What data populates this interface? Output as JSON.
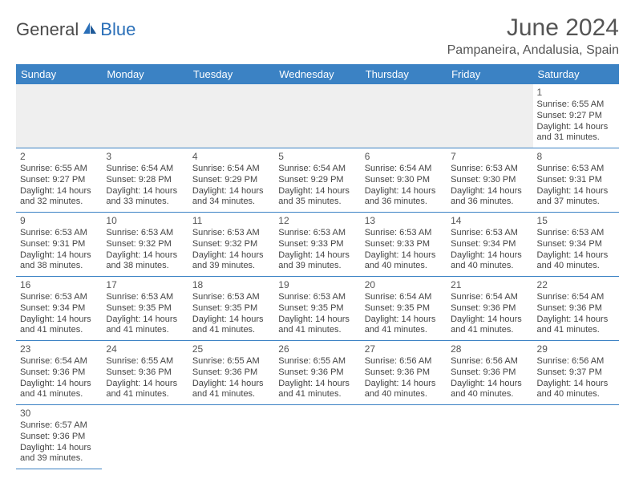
{
  "logo": {
    "text1": "General",
    "text2": "Blue"
  },
  "title": "June 2024",
  "subtitle": "Pampaneira, Andalusia, Spain",
  "colors": {
    "header_bg": "#3b82c4",
    "header_fg": "#ffffff",
    "empty_bg": "#efefef",
    "border": "#3b82c4",
    "text": "#444444",
    "logo_blue": "#2a6fb8"
  },
  "typography": {
    "title_fontsize": 30,
    "subtitle_fontsize": 16,
    "header_fontsize": 13,
    "cell_fontsize": 11,
    "daynum_fontsize": 12
  },
  "headers": [
    "Sunday",
    "Monday",
    "Tuesday",
    "Wednesday",
    "Thursday",
    "Friday",
    "Saturday"
  ],
  "weeks": [
    [
      null,
      null,
      null,
      null,
      null,
      null,
      {
        "day": "1",
        "sunrise": "Sunrise: 6:55 AM",
        "sunset": "Sunset: 9:27 PM",
        "daylight1": "Daylight: 14 hours",
        "daylight2": "and 31 minutes."
      }
    ],
    [
      {
        "day": "2",
        "sunrise": "Sunrise: 6:55 AM",
        "sunset": "Sunset: 9:27 PM",
        "daylight1": "Daylight: 14 hours",
        "daylight2": "and 32 minutes."
      },
      {
        "day": "3",
        "sunrise": "Sunrise: 6:54 AM",
        "sunset": "Sunset: 9:28 PM",
        "daylight1": "Daylight: 14 hours",
        "daylight2": "and 33 minutes."
      },
      {
        "day": "4",
        "sunrise": "Sunrise: 6:54 AM",
        "sunset": "Sunset: 9:29 PM",
        "daylight1": "Daylight: 14 hours",
        "daylight2": "and 34 minutes."
      },
      {
        "day": "5",
        "sunrise": "Sunrise: 6:54 AM",
        "sunset": "Sunset: 9:29 PM",
        "daylight1": "Daylight: 14 hours",
        "daylight2": "and 35 minutes."
      },
      {
        "day": "6",
        "sunrise": "Sunrise: 6:54 AM",
        "sunset": "Sunset: 9:30 PM",
        "daylight1": "Daylight: 14 hours",
        "daylight2": "and 36 minutes."
      },
      {
        "day": "7",
        "sunrise": "Sunrise: 6:53 AM",
        "sunset": "Sunset: 9:30 PM",
        "daylight1": "Daylight: 14 hours",
        "daylight2": "and 36 minutes."
      },
      {
        "day": "8",
        "sunrise": "Sunrise: 6:53 AM",
        "sunset": "Sunset: 9:31 PM",
        "daylight1": "Daylight: 14 hours",
        "daylight2": "and 37 minutes."
      }
    ],
    [
      {
        "day": "9",
        "sunrise": "Sunrise: 6:53 AM",
        "sunset": "Sunset: 9:31 PM",
        "daylight1": "Daylight: 14 hours",
        "daylight2": "and 38 minutes."
      },
      {
        "day": "10",
        "sunrise": "Sunrise: 6:53 AM",
        "sunset": "Sunset: 9:32 PM",
        "daylight1": "Daylight: 14 hours",
        "daylight2": "and 38 minutes."
      },
      {
        "day": "11",
        "sunrise": "Sunrise: 6:53 AM",
        "sunset": "Sunset: 9:32 PM",
        "daylight1": "Daylight: 14 hours",
        "daylight2": "and 39 minutes."
      },
      {
        "day": "12",
        "sunrise": "Sunrise: 6:53 AM",
        "sunset": "Sunset: 9:33 PM",
        "daylight1": "Daylight: 14 hours",
        "daylight2": "and 39 minutes."
      },
      {
        "day": "13",
        "sunrise": "Sunrise: 6:53 AM",
        "sunset": "Sunset: 9:33 PM",
        "daylight1": "Daylight: 14 hours",
        "daylight2": "and 40 minutes."
      },
      {
        "day": "14",
        "sunrise": "Sunrise: 6:53 AM",
        "sunset": "Sunset: 9:34 PM",
        "daylight1": "Daylight: 14 hours",
        "daylight2": "and 40 minutes."
      },
      {
        "day": "15",
        "sunrise": "Sunrise: 6:53 AM",
        "sunset": "Sunset: 9:34 PM",
        "daylight1": "Daylight: 14 hours",
        "daylight2": "and 40 minutes."
      }
    ],
    [
      {
        "day": "16",
        "sunrise": "Sunrise: 6:53 AM",
        "sunset": "Sunset: 9:34 PM",
        "daylight1": "Daylight: 14 hours",
        "daylight2": "and 41 minutes."
      },
      {
        "day": "17",
        "sunrise": "Sunrise: 6:53 AM",
        "sunset": "Sunset: 9:35 PM",
        "daylight1": "Daylight: 14 hours",
        "daylight2": "and 41 minutes."
      },
      {
        "day": "18",
        "sunrise": "Sunrise: 6:53 AM",
        "sunset": "Sunset: 9:35 PM",
        "daylight1": "Daylight: 14 hours",
        "daylight2": "and 41 minutes."
      },
      {
        "day": "19",
        "sunrise": "Sunrise: 6:53 AM",
        "sunset": "Sunset: 9:35 PM",
        "daylight1": "Daylight: 14 hours",
        "daylight2": "and 41 minutes."
      },
      {
        "day": "20",
        "sunrise": "Sunrise: 6:54 AM",
        "sunset": "Sunset: 9:35 PM",
        "daylight1": "Daylight: 14 hours",
        "daylight2": "and 41 minutes."
      },
      {
        "day": "21",
        "sunrise": "Sunrise: 6:54 AM",
        "sunset": "Sunset: 9:36 PM",
        "daylight1": "Daylight: 14 hours",
        "daylight2": "and 41 minutes."
      },
      {
        "day": "22",
        "sunrise": "Sunrise: 6:54 AM",
        "sunset": "Sunset: 9:36 PM",
        "daylight1": "Daylight: 14 hours",
        "daylight2": "and 41 minutes."
      }
    ],
    [
      {
        "day": "23",
        "sunrise": "Sunrise: 6:54 AM",
        "sunset": "Sunset: 9:36 PM",
        "daylight1": "Daylight: 14 hours",
        "daylight2": "and 41 minutes."
      },
      {
        "day": "24",
        "sunrise": "Sunrise: 6:55 AM",
        "sunset": "Sunset: 9:36 PM",
        "daylight1": "Daylight: 14 hours",
        "daylight2": "and 41 minutes."
      },
      {
        "day": "25",
        "sunrise": "Sunrise: 6:55 AM",
        "sunset": "Sunset: 9:36 PM",
        "daylight1": "Daylight: 14 hours",
        "daylight2": "and 41 minutes."
      },
      {
        "day": "26",
        "sunrise": "Sunrise: 6:55 AM",
        "sunset": "Sunset: 9:36 PM",
        "daylight1": "Daylight: 14 hours",
        "daylight2": "and 41 minutes."
      },
      {
        "day": "27",
        "sunrise": "Sunrise: 6:56 AM",
        "sunset": "Sunset: 9:36 PM",
        "daylight1": "Daylight: 14 hours",
        "daylight2": "and 40 minutes."
      },
      {
        "day": "28",
        "sunrise": "Sunrise: 6:56 AM",
        "sunset": "Sunset: 9:36 PM",
        "daylight1": "Daylight: 14 hours",
        "daylight2": "and 40 minutes."
      },
      {
        "day": "29",
        "sunrise": "Sunrise: 6:56 AM",
        "sunset": "Sunset: 9:37 PM",
        "daylight1": "Daylight: 14 hours",
        "daylight2": "and 40 minutes."
      }
    ],
    [
      {
        "day": "30",
        "sunrise": "Sunrise: 6:57 AM",
        "sunset": "Sunset: 9:36 PM",
        "daylight1": "Daylight: 14 hours",
        "daylight2": "and 39 minutes."
      },
      null,
      null,
      null,
      null,
      null,
      null
    ]
  ]
}
